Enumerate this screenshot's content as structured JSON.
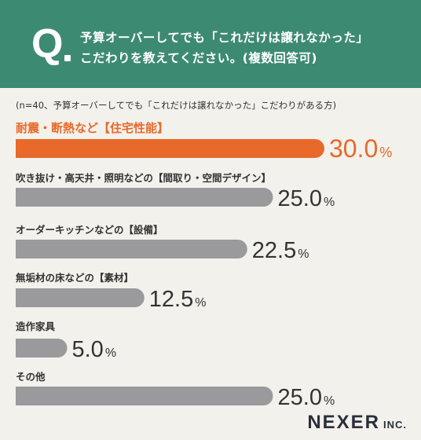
{
  "header": {
    "q_letter": "Q",
    "question_line1": "予算オーバーしてでも「これだけは譲れなかった」",
    "question_line2": "こだわりを教えてください。(複数回答可)"
  },
  "chart_note": "(n=40、予算オーバーしてでも「これだけは譲れなかった」こだわりがある方)",
  "logo": {
    "main": "NEXER",
    "suffix": "INC."
  },
  "colors": {
    "header_bg": "#3d8a72",
    "highlight": "#e8692a",
    "bar_gray": "#9a9a9c",
    "background": "#f3f1ec"
  },
  "chart_data": {
    "type": "bar",
    "orientation": "horizontal",
    "unit": "%",
    "categories": [
      "耐震・断熱など【住宅性能】",
      "吹き抜け・高天井・照明などの【間取り・空間デザイン】",
      "オーダーキッチンなどの【設備】",
      "無垢材の床などの【素材】",
      "造作家具",
      "その他"
    ],
    "values": [
      30.0,
      25.0,
      22.5,
      12.5,
      5.0,
      25.0
    ],
    "value_labels": [
      "30.0",
      "25.0",
      "22.5",
      "12.5",
      "5.0",
      "25.0"
    ],
    "highlight_index": 0,
    "xlim": [
      0,
      30.0
    ],
    "grid": false
  }
}
